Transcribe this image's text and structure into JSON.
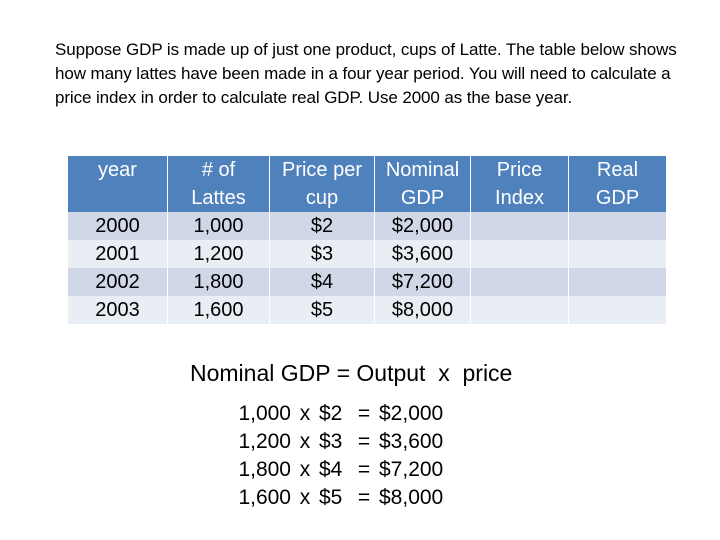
{
  "intro_text": "Suppose GDP is made up of just one product, cups of Latte.  The table below shows how many lattes have been made in a four year period.  You will need to calculate a price index in order to calculate real GDP.  Use 2000 as the base year.",
  "table": {
    "headers": [
      [
        "year",
        "# of",
        "Price per",
        "Nominal",
        "Price",
        "Real"
      ],
      [
        "",
        "Lattes",
        "cup",
        "GDP",
        "Index",
        "GDP"
      ]
    ],
    "rows": [
      [
        "2000",
        "1,000",
        "$2",
        "$2,000",
        "",
        ""
      ],
      [
        "2001",
        "1,200",
        "$3",
        "$3,600",
        "",
        ""
      ],
      [
        "2002",
        "1,800",
        "$4",
        "$7,200",
        "",
        ""
      ],
      [
        "2003",
        "1,600",
        "$5",
        "$8,000",
        "",
        ""
      ]
    ],
    "colors": {
      "header": "#4F81BD",
      "row_dark": "#D0D8E8",
      "row_light": "#E9EDF4"
    }
  },
  "formula": {
    "title": "Nominal GDP = Output  x  price",
    "rows": [
      {
        "output": "1,000",
        "times": "x",
        "price": "$2",
        "equals": "=",
        "result": "$2,000"
      },
      {
        "output": "1,200",
        "times": "x",
        "price": "$3",
        "equals": "=",
        "result": "$3,600"
      },
      {
        "output": "1,800",
        "times": "x",
        "price": "$4",
        "equals": "=",
        "result": "$7,200"
      },
      {
        "output": "1,600",
        "times": "x",
        "price": "$5",
        "equals": "=",
        "result": "$8,000"
      }
    ]
  }
}
